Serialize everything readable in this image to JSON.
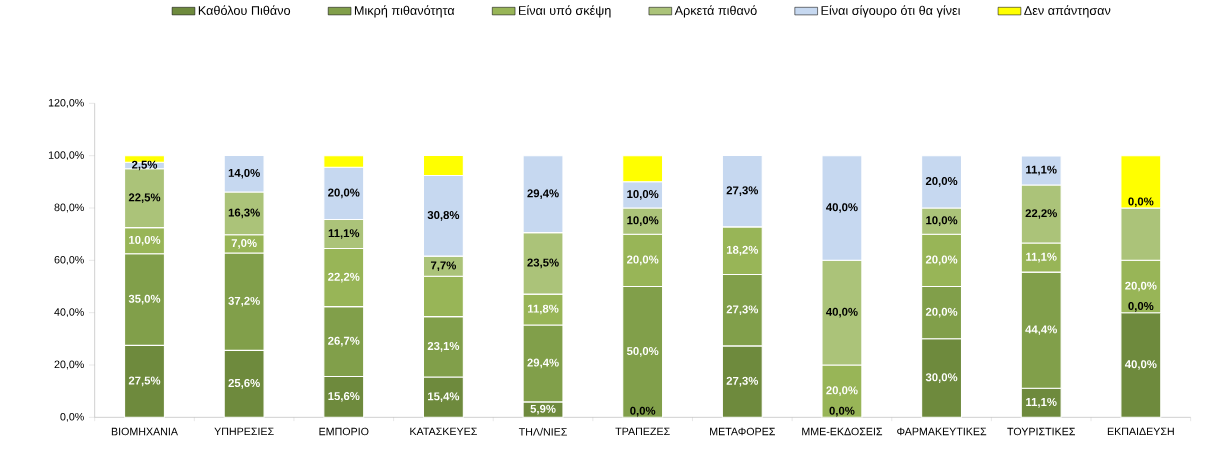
{
  "chart_data": {
    "type": "bar",
    "stacked": true,
    "legend": "top",
    "grid": false,
    "categories": [
      "ΒΙΟΜΗΧΑΝΙΑ",
      "ΥΠΗΡΕΣΙΕΣ",
      "ΕΜΠΟΡΙΟ",
      "ΚΑΤΑΣΚΕΥΕΣ",
      "ΤΗΛ/ΝΙΕΣ",
      "ΤΡΑΠΕΖΕΣ",
      "ΜΕΤΑΦΟΡΕΣ",
      "ΜΜΕ-ΕΚΔΟΣΕΙΣ",
      "ΦΑΡΜΑΚΕΥΤΙΚΕΣ",
      "ΤΟΥΡΙΣΤΙΚΕΣ",
      "ΕΚΠΑΙΔΕΥΣΗ"
    ],
    "ylim": [
      0,
      120
    ],
    "yticks": [
      {
        "value": 0,
        "label": "0,0%"
      },
      {
        "value": 20,
        "label": "20,0%"
      },
      {
        "value": 40,
        "label": "40,0%"
      },
      {
        "value": 60,
        "label": "60,0%"
      },
      {
        "value": 80,
        "label": "80,0%"
      },
      {
        "value": 100,
        "label": "100,0%"
      },
      {
        "value": 120,
        "label": "120,0%"
      }
    ],
    "annotations": [
      {
        "text": "0,0%",
        "x": "ΤΡΑΠΕΖΕΣ",
        "y": 0
      },
      {
        "text": "0,0%",
        "x": "ΜΜΕ-ΕΚΔΟΣΕΙΣ",
        "y": 0
      },
      {
        "text": "0,0%",
        "x": "ΕΚΠΑΙΔΕΥΣΗ",
        "y": 40
      },
      {
        "text": "0,0%",
        "x": "ΕΚΠΑΙΔΕΥΣΗ",
        "y": 80
      }
    ],
    "series": [
      {
        "name": "Καθόλου Πιθάνο",
        "color": "#6e8a3d",
        "values": [
          27.5,
          25.6,
          15.6,
          15.4,
          5.9,
          0.0,
          27.3,
          0.0,
          30.0,
          11.1,
          40.0
        ],
        "value_labels": [
          "27,5%",
          "25,6%",
          "15,6%",
          "15,4%",
          "5,9%",
          null,
          "27,3%",
          null,
          "30,0%",
          "11,1%",
          "40,0%"
        ]
      },
      {
        "name": "Μικρή πιθανότητα",
        "color": "#819f4a",
        "values": [
          35.0,
          37.2,
          26.7,
          23.1,
          29.4,
          50.0,
          27.3,
          null,
          20.0,
          44.4,
          0.0
        ],
        "value_labels": [
          "35,0%",
          "37,2%",
          "26,7%",
          "23,1%",
          "29,4%",
          "50,0%",
          "27,3%",
          null,
          "20,0%",
          "44,4%",
          null
        ]
      },
      {
        "name": "Είναι υπό σκέψη",
        "color": "#98b557",
        "values": [
          10.0,
          7.0,
          22.2,
          15.4,
          11.8,
          20.0,
          18.2,
          20.0,
          20.0,
          11.1,
          20.0
        ],
        "value_labels": [
          "10,0%",
          "7,0%",
          "22,2%",
          null,
          "11,8%",
          "20,0%",
          "18,2%",
          "20,0%",
          "20,0%",
          "11,1%",
          "20,0%"
        ]
      },
      {
        "name": "Αρκετά πιθανό",
        "color": "#abc379",
        "values": [
          22.5,
          16.3,
          11.1,
          7.7,
          23.5,
          10.0,
          null,
          40.0,
          10.0,
          22.2,
          20.0
        ],
        "value_labels": [
          "22,5%",
          "16,3%",
          "11,1%",
          "7,7%",
          "23,5%",
          "10,0%",
          null,
          "40,0%",
          "10,0%",
          "22,2%",
          null
        ]
      },
      {
        "name": "Είναι σίγουρο ότι θα γίνει",
        "color": "#c6d8f0",
        "values": [
          2.5,
          14.0,
          20.0,
          30.8,
          29.4,
          10.0,
          27.3,
          40.0,
          20.0,
          11.1,
          0.0
        ],
        "value_labels": [
          "2,5%",
          "14,0%",
          "20,0%",
          "30,8%",
          "29,4%",
          "10,0%",
          "27,3%",
          "40,0%",
          "20,0%",
          "11,1%",
          null
        ]
      },
      {
        "name": "Δεν απάντησαν",
        "color": "#ffff00",
        "values": [
          2.5,
          null,
          4.4,
          7.7,
          null,
          10.0,
          null,
          null,
          null,
          null,
          20.0
        ]
      }
    ]
  }
}
